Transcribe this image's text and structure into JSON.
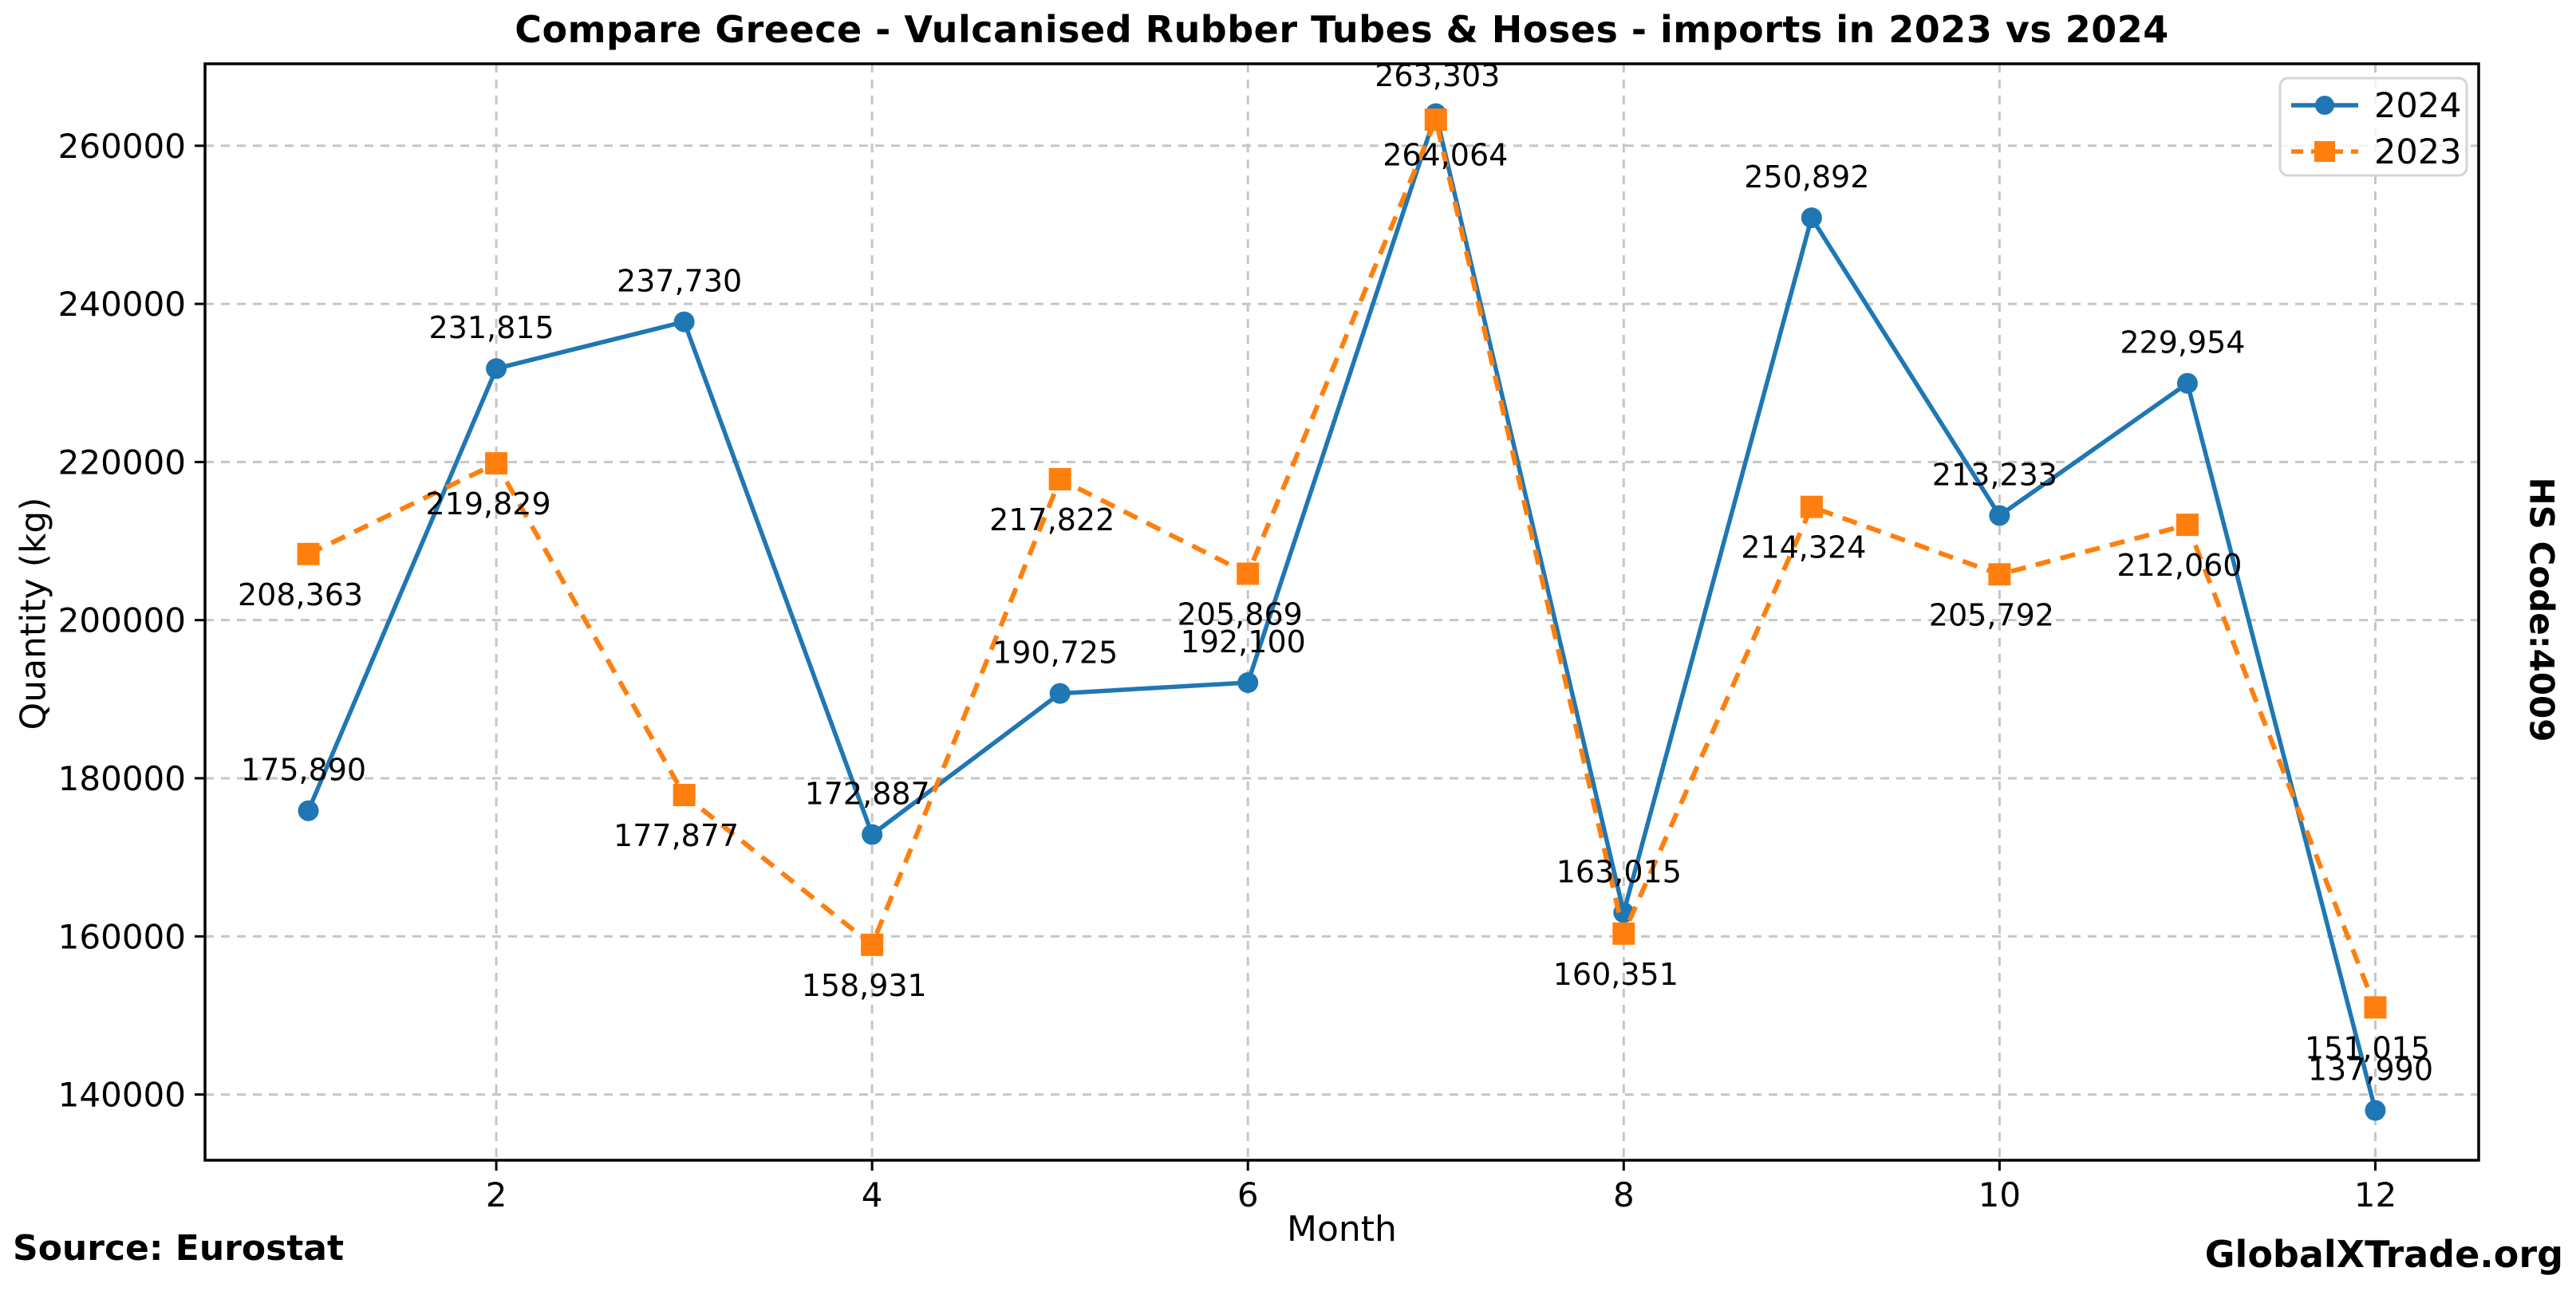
{
  "title": "Compare Greece - Vulcanised Rubber Tubes & Hoses - imports in 2023 vs 2024",
  "right_label": "HS Code:4009",
  "source_note": "Source: Eurostat",
  "brand": "GlobalXTrade.org",
  "colors": {
    "series_2024": "#1f77b4",
    "series_2023": "#ff7f0e",
    "grid": "#c6c6c6",
    "spine": "#000000",
    "legend_border": "#d5d5d5"
  },
  "chart_data": {
    "type": "line",
    "x": [
      1,
      2,
      3,
      4,
      5,
      6,
      7,
      8,
      9,
      10,
      11,
      12
    ],
    "series": [
      {
        "name": "2024",
        "color": "#1f77b4",
        "marker": "circle",
        "line": "solid",
        "values": [
          175890,
          231815,
          237730,
          172887,
          190725,
          192100,
          264064,
          163015,
          250892,
          213233,
          229954,
          137990
        ],
        "label_offset": [
          -6,
          -38
        ]
      },
      {
        "name": "2023",
        "color": "#ff7f0e",
        "marker": "square",
        "line": "dashed",
        "values": [
          208363,
          219829,
          177877,
          158931,
          217822,
          205869,
          263303,
          160351,
          214324,
          205792,
          212060,
          151015
        ],
        "label_offset": [
          -10,
          64
        ]
      }
    ],
    "label_overrides": {
      "7": {
        "2024": [
          12,
          65
        ],
        "2023": [
          2,
          -42
        ]
      }
    },
    "title": "Compare Greece - Vulcanised Rubber Tubes & Hoses - imports in 2023 vs 2024",
    "xlabel": "Month",
    "ylabel": "Quantity (kg)",
    "xticks": [
      2,
      4,
      6,
      8,
      10,
      12
    ],
    "yticks": [
      140000,
      160000,
      180000,
      200000,
      220000,
      240000,
      260000
    ],
    "xlim": [
      0.45,
      12.55
    ],
    "ylim": [
      131686,
      270368
    ],
    "grid": true,
    "legend_position": "top-right"
  }
}
